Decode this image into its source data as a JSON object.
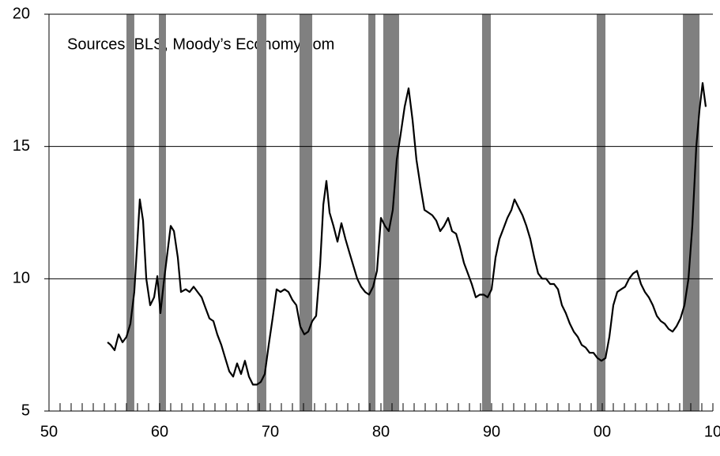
{
  "chart_data": {
    "type": "line",
    "annotation": "Sources: BLS, Moody’s Economy.com",
    "color": "#000000",
    "recession_color": "#808080",
    "grid": true,
    "xlim": [
      1950,
      2010
    ],
    "ylim": [
      5,
      20
    ],
    "yticks": [
      5,
      10,
      15,
      20
    ],
    "xticks": [
      {
        "value": 1950,
        "label": "50"
      },
      {
        "value": 1960,
        "label": "60"
      },
      {
        "value": 1970,
        "label": "70"
      },
      {
        "value": 1980,
        "label": "80"
      },
      {
        "value": 1990,
        "label": "90"
      },
      {
        "value": 2000,
        "label": "00"
      },
      {
        "value": 2010,
        "label": "10"
      }
    ],
    "xminorticks": [
      1951,
      1952,
      1953,
      1954,
      1955,
      1956,
      1957,
      1958,
      1959,
      1961,
      1962,
      1963,
      1964,
      1965,
      1966,
      1967,
      1968,
      1969,
      1971,
      1972,
      1973,
      1974,
      1975,
      1976,
      1977,
      1978,
      1979,
      1981,
      1982,
      1983,
      1984,
      1985,
      1986,
      1987,
      1988,
      1989,
      1991,
      1992,
      1993,
      1994,
      1995,
      1996,
      1997,
      1998,
      1999,
      2001,
      2002,
      2003,
      2004,
      2005,
      2006,
      2007,
      2008,
      2009
    ],
    "recessions": [
      [
        1957.0,
        1957.71
      ],
      [
        1959.93,
        1960.57
      ],
      [
        1968.79,
        1969.64
      ],
      [
        1972.64,
        1973.79
      ],
      [
        1978.86,
        1979.5
      ],
      [
        1980.21,
        1981.64
      ],
      [
        1989.14,
        1989.93
      ],
      [
        1999.5,
        2000.29
      ],
      [
        2007.29,
        2008.79
      ]
    ],
    "x": [
      1955.29,
      1955.57,
      1955.93,
      1956.29,
      1956.64,
      1957.0,
      1957.36,
      1957.71,
      1958.0,
      1958.21,
      1958.5,
      1958.79,
      1959.14,
      1959.5,
      1959.79,
      1960.07,
      1960.36,
      1960.71,
      1961.0,
      1961.29,
      1961.64,
      1961.93,
      1962.36,
      1962.71,
      1963.07,
      1963.43,
      1963.79,
      1964.14,
      1964.5,
      1964.86,
      1965.21,
      1965.57,
      1965.93,
      1966.29,
      1966.64,
      1967.0,
      1967.36,
      1967.71,
      1968.07,
      1968.43,
      1968.79,
      1969.14,
      1969.5,
      1969.86,
      1970.21,
      1970.57,
      1970.93,
      1971.29,
      1971.64,
      1972.0,
      1972.36,
      1972.71,
      1973.07,
      1973.43,
      1973.79,
      1974.14,
      1974.5,
      1974.79,
      1975.07,
      1975.36,
      1975.71,
      1976.07,
      1976.43,
      1976.79,
      1977.14,
      1977.5,
      1977.86,
      1978.21,
      1978.57,
      1978.93,
      1979.29,
      1979.64,
      1980.0,
      1980.36,
      1980.71,
      1981.07,
      1981.43,
      1981.79,
      1982.14,
      1982.5,
      1982.86,
      1983.21,
      1983.57,
      1983.93,
      1984.29,
      1984.64,
      1985.0,
      1985.36,
      1985.71,
      1986.07,
      1986.43,
      1986.79,
      1987.14,
      1987.5,
      1987.86,
      1988.21,
      1988.57,
      1988.93,
      1989.29,
      1989.64,
      1990.0,
      1990.36,
      1990.71,
      1991.07,
      1991.43,
      1991.79,
      1992.07,
      1992.43,
      1992.79,
      1993.14,
      1993.5,
      1993.86,
      1994.21,
      1994.57,
      1994.93,
      1995.29,
      1995.64,
      1996.0,
      1996.36,
      1996.71,
      1997.07,
      1997.43,
      1997.79,
      1998.14,
      1998.5,
      1998.86,
      1999.21,
      1999.57,
      1999.93,
      2000.29,
      2000.64,
      2001.0,
      2001.36,
      2001.71,
      2002.07,
      2002.43,
      2002.79,
      2003.14,
      2003.5,
      2003.86,
      2004.21,
      2004.57,
      2004.93,
      2005.29,
      2005.64,
      2006.0,
      2006.36,
      2006.71,
      2007.07,
      2007.43,
      2007.79,
      2008.14,
      2008.5,
      2008.79,
      2009.07,
      2009.36
    ],
    "values": [
      7.6,
      7.5,
      7.3,
      7.9,
      7.6,
      7.8,
      8.3,
      9.5,
      11.5,
      13.0,
      12.2,
      10.0,
      9.0,
      9.3,
      10.1,
      8.7,
      9.8,
      11.0,
      12.0,
      11.8,
      10.8,
      9.5,
      9.6,
      9.5,
      9.7,
      9.5,
      9.3,
      8.9,
      8.5,
      8.4,
      7.9,
      7.5,
      7.0,
      6.5,
      6.3,
      6.8,
      6.4,
      6.9,
      6.3,
      6.0,
      6.0,
      6.1,
      6.4,
      7.5,
      8.5,
      9.6,
      9.5,
      9.6,
      9.5,
      9.2,
      9.0,
      8.2,
      7.9,
      8.0,
      8.4,
      8.6,
      10.5,
      12.8,
      13.7,
      12.5,
      12.0,
      11.4,
      12.1,
      11.5,
      11.0,
      10.5,
      10.0,
      9.7,
      9.5,
      9.4,
      9.7,
      10.3,
      12.3,
      12.0,
      11.8,
      12.6,
      14.5,
      15.5,
      16.5,
      17.2,
      16.0,
      14.5,
      13.5,
      12.6,
      12.5,
      12.4,
      12.2,
      11.8,
      12.0,
      12.3,
      11.8,
      11.7,
      11.2,
      10.6,
      10.2,
      9.8,
      9.3,
      9.4,
      9.4,
      9.3,
      9.6,
      10.8,
      11.5,
      11.9,
      12.3,
      12.6,
      13.0,
      12.7,
      12.4,
      12.0,
      11.5,
      10.8,
      10.2,
      10.0,
      10.0,
      9.8,
      9.8,
      9.6,
      9.0,
      8.7,
      8.3,
      8.0,
      7.8,
      7.5,
      7.4,
      7.2,
      7.2,
      7.0,
      6.9,
      7.0,
      7.8,
      9.0,
      9.5,
      9.6,
      9.7,
      10.0,
      10.2,
      10.3,
      9.8,
      9.5,
      9.3,
      9.0,
      8.6,
      8.4,
      8.3,
      8.1,
      8.0,
      8.2,
      8.5,
      9.0,
      10.0,
      12.0,
      15.0,
      16.4,
      17.4,
      16.5
    ]
  }
}
